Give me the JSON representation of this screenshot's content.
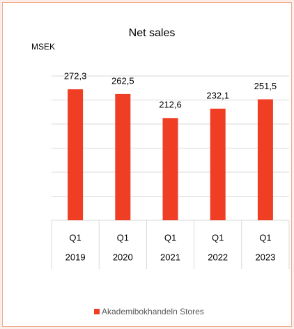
{
  "chart_data": {
    "type": "bar",
    "title": "Net sales",
    "ylabel": "MSEK",
    "categories": [
      [
        "Q1",
        "2019"
      ],
      [
        "Q1",
        "2020"
      ],
      [
        "Q1",
        "2021"
      ],
      [
        "Q1",
        "2022"
      ],
      [
        "Q1",
        "2023"
      ]
    ],
    "series": [
      {
        "name": "Akademibokhandeln Stores",
        "color": "#f03e25",
        "values": [
          272.3,
          262.5,
          212.6,
          232.1,
          251.5
        ],
        "value_labels": [
          "272,3",
          "262,5",
          "212,6",
          "232,1",
          "251,5"
        ]
      }
    ],
    "ylim": [
      0,
      300
    ],
    "yticks": [
      0,
      50,
      100,
      150,
      200,
      250,
      300
    ],
    "grid": true,
    "legend": "bottom"
  }
}
